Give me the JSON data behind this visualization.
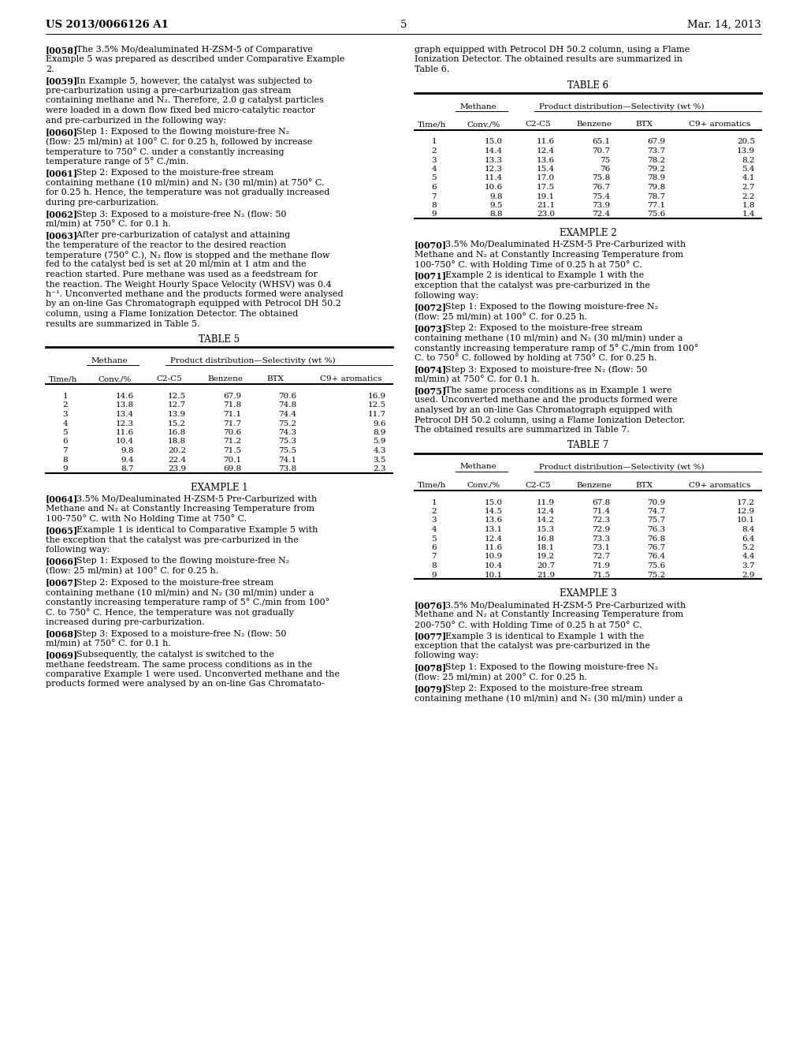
{
  "header_left": "US 2013/0066126 A1",
  "header_right": "Mar. 14, 2013",
  "page_number": "5",
  "background_color": "#ffffff",
  "table5_title": "TABLE 5",
  "table5_rows": [
    [
      1,
      14.6,
      12.5,
      67.9,
      70.6,
      16.9
    ],
    [
      2,
      13.8,
      12.7,
      71.8,
      74.8,
      12.5
    ],
    [
      3,
      13.4,
      13.9,
      71.1,
      74.4,
      11.7
    ],
    [
      4,
      12.3,
      15.2,
      71.7,
      75.2,
      9.6
    ],
    [
      5,
      11.6,
      16.8,
      70.6,
      74.3,
      8.9
    ],
    [
      6,
      10.4,
      18.8,
      71.2,
      75.3,
      5.9
    ],
    [
      7,
      9.8,
      20.2,
      71.5,
      75.5,
      4.3
    ],
    [
      8,
      9.4,
      22.4,
      70.1,
      74.1,
      3.5
    ],
    [
      9,
      8.7,
      23.9,
      69.8,
      73.8,
      2.3
    ]
  ],
  "table6_title": "TABLE 6",
  "table6_rows": [
    [
      1,
      15.0,
      11.6,
      65.1,
      67.9,
      20.5
    ],
    [
      2,
      14.4,
      12.4,
      70.7,
      73.7,
      13.9
    ],
    [
      3,
      13.3,
      13.6,
      75,
      78.2,
      8.2
    ],
    [
      4,
      12.3,
      15.4,
      76,
      79.2,
      5.4
    ],
    [
      5,
      11.4,
      17.0,
      75.8,
      78.9,
      4.1
    ],
    [
      6,
      10.6,
      17.5,
      76.7,
      79.8,
      2.7
    ],
    [
      7,
      9.8,
      19.1,
      75.4,
      78.7,
      2.2
    ],
    [
      8,
      9.5,
      21.1,
      73.9,
      77.1,
      1.8
    ],
    [
      9,
      8.8,
      23.0,
      72.4,
      75.6,
      1.4
    ]
  ],
  "table7_title": "TABLE 7",
  "table7_rows": [
    [
      1,
      15.0,
      11.9,
      67.8,
      70.9,
      17.2
    ],
    [
      2,
      14.5,
      12.4,
      71.4,
      74.7,
      12.9
    ],
    [
      3,
      13.6,
      14.2,
      72.3,
      75.7,
      10.1
    ],
    [
      4,
      13.1,
      15.3,
      72.9,
      76.3,
      8.4
    ],
    [
      5,
      12.4,
      16.8,
      73.3,
      76.8,
      6.4
    ],
    [
      6,
      11.6,
      18.1,
      73.1,
      76.7,
      5.2
    ],
    [
      7,
      10.9,
      19.2,
      72.7,
      76.4,
      4.4
    ],
    [
      8,
      10.4,
      20.7,
      71.9,
      75.6,
      3.7
    ],
    [
      9,
      10.1,
      21.9,
      71.5,
      75.2,
      2.9
    ]
  ],
  "left_blocks": [
    {
      "type": "para",
      "tag": "[0058]",
      "text": "The 3.5% Mo/dealuminated H-ZSM-5 of Comparative Example 5 was prepared as described under Comparative Example 2."
    },
    {
      "type": "para",
      "tag": "[0059]",
      "text": "In Example 5, however, the catalyst was subjected to pre-carburization using a pre-carburization gas stream containing methane and N₂. Therefore, 2.0 g catalyst particles were loaded in a down flow fixed bed micro-catalytic reactor and pre-carburized in the following way:"
    },
    {
      "type": "para",
      "tag": "[0060]",
      "text": "Step 1: Exposed to the flowing moisture-free N₂ (flow: 25 ml/min) at 100° C. for 0.25 h, followed by increase temperature to 750° C. under a constantly increasing temperature range of 5° C./min."
    },
    {
      "type": "para",
      "tag": "[0061]",
      "text": "Step 2: Exposed to the moisture-free stream containing methane (10 ml/min) and N₂ (30 ml/min) at 750° C. for 0.25 h. Hence, the temperature was not gradually increased during pre-carburization."
    },
    {
      "type": "para",
      "tag": "[0062]",
      "text": "Step 3: Exposed to a moisture-free N₂ (flow: 50 ml/min) at 750° C. for 0.1 h."
    },
    {
      "type": "para",
      "tag": "[0063]",
      "text": "After pre-carburization of catalyst and attaining the temperature of the reactor to the desired reaction temperature (750° C.), N₂ flow is stopped and the methane flow fed to the catalyst bed is set at 20 ml/min at 1 atm and the reaction started. Pure methane was used as a feedstream for the reaction. The Weight Hourly Space Velocity (WHSV) was 0.4 h⁻¹. Unconverted methane and the products formed were analysed by an on-line Gas Chromatograph equipped with Petrocol DH 50.2 column, using a Flame Ionization Detector. The obtained results are summarized in Table 5."
    },
    {
      "type": "table",
      "key": "5"
    },
    {
      "type": "section",
      "text": "EXAMPLE 1"
    },
    {
      "type": "para",
      "tag": "[0064]",
      "text": "3.5% Mo/Dealuminated H-ZSM-5 Pre-Carburized with Methane and N₂ at Constantly Increasing Temperature from 100-750° C. with No Holding Time at 750° C."
    },
    {
      "type": "para",
      "tag": "[0065]",
      "text": "Example 1 is identical to Comparative Example 5 with the exception that the catalyst was pre-carburized in the following way:"
    },
    {
      "type": "para",
      "tag": "[0066]",
      "text": "Step 1: Exposed to the flowing moisture-free N₂ (flow: 25 ml/min) at 100° C. for 0.25 h."
    },
    {
      "type": "para",
      "tag": "[0067]",
      "text": "Step 2: Exposed to the moisture-free stream containing methane (10 ml/min) and N₂ (30 ml/min) under a constantly increasing temperature ramp of 5° C./min from 100° C. to 750° C. Hence, the temperature was not gradually increased during pre-carburization."
    },
    {
      "type": "para",
      "tag": "[0068]",
      "text": "Step 3: Exposed to a moisture-free N₂ (flow: 50 ml/min) at 750° C. for 0.1 h."
    },
    {
      "type": "para",
      "tag": "[0069]",
      "text": "Subsequently, the catalyst is switched to the methane feedstream. The same process conditions as in the comparative Example 1 were used. Unconverted methane and the products formed were analysed by an on-line Gas Chromatato-"
    }
  ],
  "right_blocks": [
    {
      "type": "para",
      "tag": "",
      "text": "graph equipped with Petrocol DH 50.2 column, using a Flame Ionization Detector. The obtained results are summarized in Table 6."
    },
    {
      "type": "table",
      "key": "6"
    },
    {
      "type": "section",
      "text": "EXAMPLE 2"
    },
    {
      "type": "para",
      "tag": "[0070]",
      "text": "3.5% Mo/Dealuminated H-ZSM-5 Pre-Carburized with Methane and N₂ at Constantly Increasing Temperature from 100-750° C. with Holding Time of 0.25 h at 750° C."
    },
    {
      "type": "para",
      "tag": "[0071]",
      "text": "Example 2 is identical to Example 1 with the exception that the catalyst was pre-carburized in the following way:"
    },
    {
      "type": "para",
      "tag": "[0072]",
      "text": "Step 1: Exposed to the flowing moisture-free N₂ (flow: 25 ml/min) at 100° C. for 0.25 h."
    },
    {
      "type": "para",
      "tag": "[0073]",
      "text": "Step 2: Exposed to the moisture-free stream containing methane (10 ml/min) and N₂ (30 ml/min) under a constantly increasing temperature ramp of 5° C./min from 100° C. to 750° C. followed by holding at 750° C. for 0.25 h."
    },
    {
      "type": "para",
      "tag": "[0074]",
      "text": "Step 3: Exposed to moisture-free N₂ (flow: 50 ml/min) at 750° C. for 0.1 h."
    },
    {
      "type": "para",
      "tag": "[0075]",
      "text": "The same process conditions as in Example 1 were used. Unconverted methane and the products formed were analysed by an on-line Gas Chromatograph equipped with Petrocol DH 50.2 column, using a Flame Ionization Detector. The obtained results are summarized in Table 7."
    },
    {
      "type": "table",
      "key": "7"
    },
    {
      "type": "section",
      "text": "EXAMPLE 3"
    },
    {
      "type": "para",
      "tag": "[0076]",
      "text": "3.5% Mo/Dealuminated H-ZSM-5 Pre-Carburized with Methane and N₂ at Constantly Increasing Temperature from 200-750° C. with Holding Time of 0.25 h at 750° C."
    },
    {
      "type": "para",
      "tag": "[0077]",
      "text": "Example 3 is identical to Example 1 with the exception that the catalyst was pre-carburized in the following way:"
    },
    {
      "type": "para",
      "tag": "[0078]",
      "text": "Step 1: Exposed to the flowing moisture-free N₂ (flow: 25 ml/min) at 200° C. for 0.25 h."
    },
    {
      "type": "para",
      "tag": "[0079]",
      "text": "Step 2: Exposed to the moisture-free stream containing methane (10 ml/min) and N₂ (30 ml/min) under a"
    }
  ]
}
